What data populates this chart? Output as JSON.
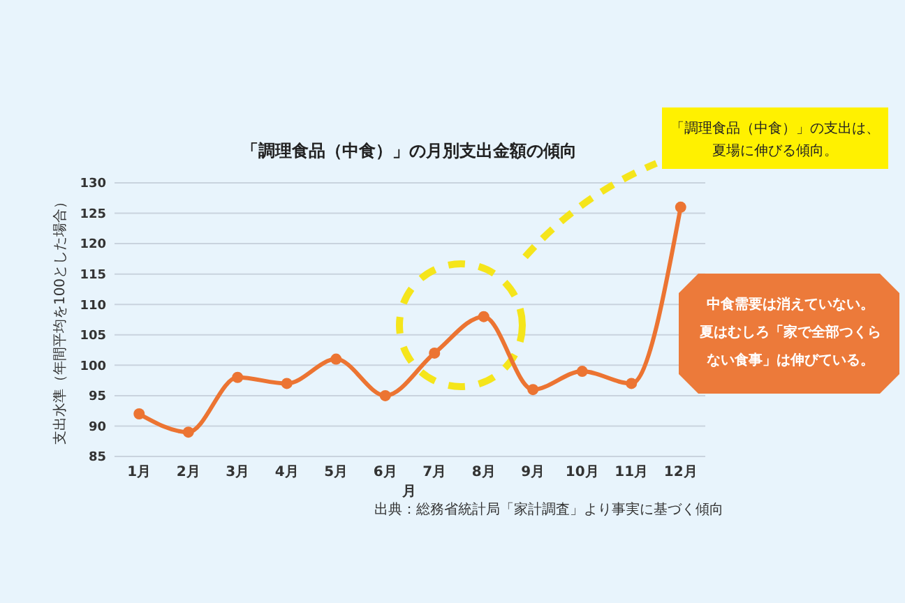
{
  "chart_data": {
    "type": "line",
    "title": "「調理食品（中食）」の月別支出金額の傾向",
    "xlabel": "月",
    "ylabel": "支出水準（年間平均を100とした場合）",
    "categories": [
      "1月",
      "2月",
      "3月",
      "4月",
      "5月",
      "6月",
      "7月",
      "8月",
      "9月",
      "10月",
      "11月",
      "12月"
    ],
    "series": [
      {
        "color": "#ec7432",
        "values": [
          92,
          89,
          98,
          97,
          101,
          95,
          102,
          108,
          96,
          99,
          97,
          126
        ]
      }
    ],
    "ylim": [
      85,
      130
    ],
    "yticks": [
      85,
      90,
      95,
      100,
      105,
      110,
      115,
      120,
      125,
      130
    ],
    "grid": "y",
    "marker": "circle",
    "line_style": "solid",
    "annotations": [
      "出典：総務省統計局「家計調査」より事実に基づく傾向",
      "「調理食品（中食）」の支出は、夏場に伸びる傾向。",
      "中食需要は消えていない。夏はむしろ「家で全部つくらない食事」は伸びている。"
    ]
  }
}
